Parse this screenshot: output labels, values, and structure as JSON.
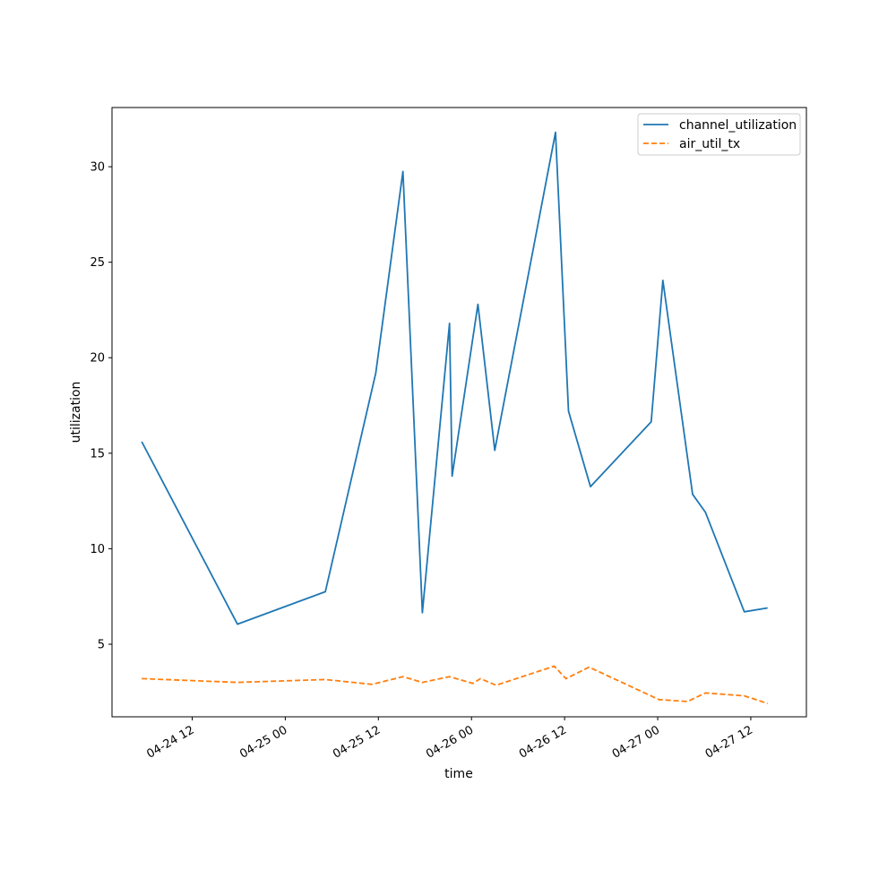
{
  "chart_data": {
    "type": "line",
    "title": "",
    "xlabel": "time",
    "ylabel": "utilization",
    "grid": false,
    "legend_position": "top-right",
    "x_ticks": [
      "2024-04-24T12:00",
      "2024-04-25T00:00",
      "2024-04-25T12:00",
      "2024-04-26T00:00",
      "2024-04-26T12:00",
      "2024-04-27T00:00",
      "2024-04-27T12:00"
    ],
    "x_tick_labels": [
      "04-24 12",
      "04-25 00",
      "04-25 12",
      "04-26 00",
      "04-26 12",
      "04-27 00",
      "04-27 12"
    ],
    "xlim": [
      "2024-04-24T01:40",
      "2024-04-27T19:10"
    ],
    "y_ticks": [
      5,
      10,
      15,
      20,
      25,
      30
    ],
    "y_tick_labels": [
      "5",
      "10",
      "15",
      "20",
      "25",
      "30"
    ],
    "ylim": [
      1.2,
      33.1
    ],
    "series": [
      {
        "name": "channel_utilization",
        "color": "#1f77b4",
        "dash": "solid",
        "points": [
          {
            "x": "2024-04-24T05:30",
            "y": 15.6
          },
          {
            "x": "2024-04-24T17:50",
            "y": 6.05
          },
          {
            "x": "2024-04-25T05:10",
            "y": 7.75
          },
          {
            "x": "2024-04-25T11:40",
            "y": 19.2
          },
          {
            "x": "2024-04-25T15:10",
            "y": 29.75
          },
          {
            "x": "2024-04-25T17:40",
            "y": 6.65
          },
          {
            "x": "2024-04-25T21:10",
            "y": 21.8
          },
          {
            "x": "2024-04-25T21:30",
            "y": 13.8
          },
          {
            "x": "2024-04-26T00:50",
            "y": 22.8
          },
          {
            "x": "2024-04-26T03:00",
            "y": 15.15
          },
          {
            "x": "2024-04-26T10:50",
            "y": 31.8
          },
          {
            "x": "2024-04-26T12:30",
            "y": 17.2
          },
          {
            "x": "2024-04-26T15:20",
            "y": 13.25
          },
          {
            "x": "2024-04-26T23:10",
            "y": 16.65
          },
          {
            "x": "2024-04-27T00:40",
            "y": 24.05
          },
          {
            "x": "2024-04-27T04:30",
            "y": 12.85
          },
          {
            "x": "2024-04-27T06:10",
            "y": 11.9
          },
          {
            "x": "2024-04-27T11:10",
            "y": 6.7
          },
          {
            "x": "2024-04-27T14:10",
            "y": 6.9
          }
        ]
      },
      {
        "name": "air_util_tx",
        "color": "#ff7f0e",
        "dash": "dashed",
        "points": [
          {
            "x": "2024-04-24T05:30",
            "y": 3.2
          },
          {
            "x": "2024-04-24T17:50",
            "y": 3.0
          },
          {
            "x": "2024-04-25T05:10",
            "y": 3.15
          },
          {
            "x": "2024-04-25T11:10",
            "y": 2.9
          },
          {
            "x": "2024-04-25T15:10",
            "y": 3.3
          },
          {
            "x": "2024-04-25T17:40",
            "y": 3.0
          },
          {
            "x": "2024-04-25T21:10",
            "y": 3.3
          },
          {
            "x": "2024-04-26T00:10",
            "y": 2.95
          },
          {
            "x": "2024-04-26T01:10",
            "y": 3.2
          },
          {
            "x": "2024-04-26T03:10",
            "y": 2.85
          },
          {
            "x": "2024-04-26T10:40",
            "y": 3.85
          },
          {
            "x": "2024-04-26T12:10",
            "y": 3.2
          },
          {
            "x": "2024-04-26T15:10",
            "y": 3.8
          },
          {
            "x": "2024-04-27T00:10",
            "y": 2.1
          },
          {
            "x": "2024-04-27T03:50",
            "y": 2.0
          },
          {
            "x": "2024-04-27T06:10",
            "y": 2.45
          },
          {
            "x": "2024-04-27T11:10",
            "y": 2.3
          },
          {
            "x": "2024-04-27T14:10",
            "y": 1.9
          }
        ]
      }
    ]
  }
}
